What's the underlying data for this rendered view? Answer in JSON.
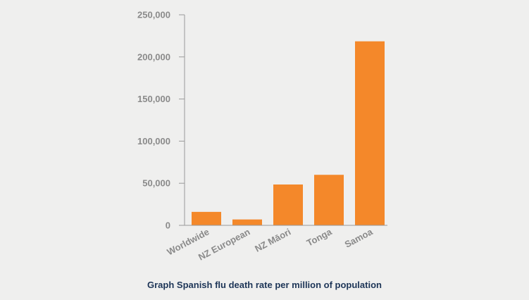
{
  "caption": "Graph Spanish flu death rate per million of population",
  "colors": {
    "bar": "#f4882a",
    "axis": "#9a9a9a",
    "tick_text": "#8a8a8a",
    "caption_text": "#1d3557",
    "background": "#efefee"
  },
  "chart_data": {
    "type": "bar",
    "title": "",
    "xlabel": "",
    "ylabel": "",
    "categories": [
      "Worldwide",
      "NZ European",
      "NZ Māori",
      "Tonga",
      "Samoa"
    ],
    "values": [
      16000,
      7000,
      48500,
      60000,
      218500
    ],
    "ylim": [
      0,
      250000
    ],
    "yticks": [
      0,
      50000,
      100000,
      150000,
      200000,
      250000
    ],
    "ytick_labels": [
      "0",
      "50,000",
      "100,000",
      "150,000",
      "200,000",
      "250,000"
    ],
    "grid": false,
    "legend": "none"
  }
}
